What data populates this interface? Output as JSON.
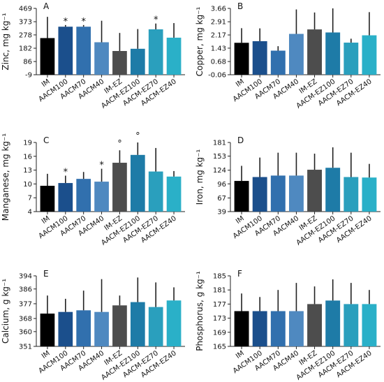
{
  "chart_data": [
    {
      "type": "bar",
      "letter": "A",
      "ylabel": "Zinc, mg kg⁻¹",
      "yticks": [
        "-9",
        "86",
        "182",
        "278",
        "373",
        "469"
      ],
      "ylim": [
        -9,
        469
      ],
      "categories": [
        "IM",
        "AACM100",
        "AACM70",
        "AACM40",
        "IM-EZ",
        "AACM-EZ100",
        "AACM-EZ70",
        "AACM-EZ40"
      ],
      "values": [
        255,
        337,
        337,
        225,
        162,
        178,
        318,
        258
      ],
      "errors": [
        153,
        12,
        12,
        155,
        130,
        142,
        42,
        105
      ],
      "markers": [
        "",
        "*",
        "*",
        "",
        "",
        "",
        "*",
        ""
      ]
    },
    {
      "type": "bar",
      "letter": "B",
      "ylabel": "Copper, mg kg⁻¹",
      "yticks": [
        "-0.06",
        "0.68",
        "1.43",
        "2.17",
        "2.91",
        "3.66"
      ],
      "ylim": [
        -0.06,
        3.66
      ],
      "categories": [
        "IM",
        "AACM100",
        "AACM70",
        "AACM40",
        "IM-EZ",
        "AACM-EZ100",
        "AACM-EZ70",
        "AACM-EZ40"
      ],
      "values": [
        1.73,
        1.82,
        1.29,
        2.23,
        2.48,
        2.31,
        1.74,
        2.15
      ],
      "errors": [
        0.82,
        0.72,
        0.25,
        1.37,
        0.95,
        1.35,
        0.22,
        1.3
      ],
      "markers": [
        "",
        "",
        "",
        "",
        "",
        "",
        "",
        ""
      ]
    },
    {
      "type": "bar",
      "letter": "C",
      "ylabel": "Manganese, mg kg⁻¹",
      "yticks": [
        "4",
        "7",
        "10",
        "13",
        "16",
        "19"
      ],
      "ylim": [
        4,
        19
      ],
      "categories": [
        "IM",
        "AACM100",
        "AACM70",
        "AACM40",
        "IM-EZ",
        "AACM-EZ100",
        "AACM-EZ70",
        "AACM-EZ40"
      ],
      "values": [
        9.6,
        10.2,
        11.1,
        10.5,
        14.6,
        16.3,
        12.7,
        11.6
      ],
      "errors": [
        2.6,
        1.6,
        1.5,
        2.8,
        2.7,
        2.7,
        5.1,
        1.2
      ],
      "markers": [
        "",
        "*",
        "",
        "*",
        "°",
        "°",
        "",
        ""
      ]
    },
    {
      "type": "bar",
      "letter": "D",
      "ylabel": "Iron, mg kg⁻¹",
      "yticks": [
        "39",
        "67",
        "96",
        "124",
        "153",
        "181"
      ],
      "ylim": [
        39,
        181
      ],
      "categories": [
        "IM",
        "AACM100",
        "AACM70",
        "AACM40",
        "IM-EZ",
        "AACM-EZ100",
        "AACM-EZ70",
        "AACM-EZ40"
      ],
      "values": [
        102,
        110,
        113,
        113,
        125,
        129,
        110,
        109
      ],
      "errors": [
        31,
        40,
        47,
        47,
        33,
        42,
        50,
        28
      ],
      "markers": [
        "",
        "",
        "",
        "",
        "",
        "",
        "",
        ""
      ]
    },
    {
      "type": "bar",
      "letter": "E",
      "ylabel": "Calcium, g kg⁻¹",
      "yticks": [
        "351",
        "360",
        "368",
        "377",
        "386",
        "394"
      ],
      "ylim": [
        351,
        394
      ],
      "categories": [
        "IM",
        "AACM100",
        "AACM70",
        "AACM40",
        "IM-EZ",
        "AACM-EZ100",
        "AACM-EZ70",
        "AACM-EZ40"
      ],
      "values": [
        371,
        372,
        373,
        372,
        376,
        378,
        375,
        379
      ],
      "errors": [
        11,
        8,
        12,
        20,
        6,
        15,
        15,
        8
      ],
      "markers": [
        "",
        "",
        "",
        "",
        "",
        "",
        "",
        ""
      ]
    },
    {
      "type": "bar",
      "letter": "F",
      "ylabel": "Phosphorus, g kg⁻¹",
      "yticks": [
        "165",
        "169",
        "173",
        "177",
        "181",
        "185"
      ],
      "ylim": [
        165,
        185
      ],
      "categories": [
        "IM",
        "AACM100",
        "AACM70",
        "AACM40",
        "IM-EZ",
        "AACM-EZ100",
        "AACM-EZ70",
        "AACM-EZ40"
      ],
      "values": [
        175,
        175,
        175,
        175,
        177,
        178,
        177,
        177
      ],
      "errors": [
        5,
        4,
        6,
        8,
        5,
        6,
        6,
        4
      ],
      "markers": [
        "",
        "",
        "",
        "",
        "",
        "",
        "",
        ""
      ]
    }
  ],
  "colors": [
    "#000000",
    "#1b4f8c",
    "#3170ae",
    "#4f89c0",
    "#4d4d4d",
    "#1e7ba7",
    "#2a9fbd",
    "#2ab0c8"
  ]
}
